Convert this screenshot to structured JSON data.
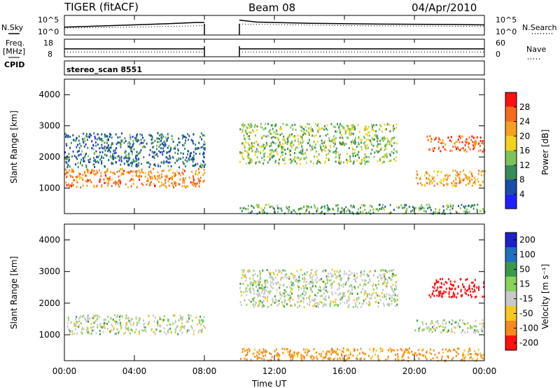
{
  "header": {
    "radar": "TIGER (fitACF)",
    "beam": "Beam 08",
    "date": "04/Apr/2010"
  },
  "left_labels": {
    "nsky": "N.Sky",
    "freq_line1": "Freq.",
    "freq_line2": "[MHz]",
    "cpid": "CPID"
  },
  "right_labels": {
    "nsearch": "N.Search",
    "nave": "Nave"
  },
  "nsky_axis": {
    "top": "10^5",
    "bottom": "10^0"
  },
  "freq_axis": {
    "top": "18",
    "bottom": "8"
  },
  "nave_axis": {
    "top": "60",
    "bottom": "0"
  },
  "cpid_text": "stereo_scan 8551",
  "xaxis": {
    "label": "Time UT",
    "ticks": [
      "00:00",
      "04:00",
      "08:00",
      "12:00",
      "16:00",
      "20:00",
      "00:00"
    ]
  },
  "yaxis": {
    "label": "Slant Range [km]",
    "ticks": [
      "1000",
      "2000",
      "3000",
      "4000"
    ]
  },
  "power_colorbar": {
    "label": "Power [dB]",
    "ticks": [
      "4",
      "8",
      "12",
      "16",
      "20",
      "24",
      "28"
    ],
    "colors": [
      "#2020ff",
      "#1a4da6",
      "#3a8a5a",
      "#7cc45a",
      "#f2d21c",
      "#f6a01f",
      "#f66a1c",
      "#ff1010"
    ]
  },
  "velocity_colorbar": {
    "label": "Velocity [m s⁻¹]",
    "ticks": [
      "200",
      "100",
      "50",
      "15",
      "-15",
      "-50",
      "-100",
      "-200"
    ],
    "colors": [
      "#2020c8",
      "#2070c0",
      "#3a9a4a",
      "#8ad25a",
      "#c8c8c8",
      "#f6c81c",
      "#f68a1c",
      "#ff1010"
    ]
  },
  "chart_data": [
    {
      "type": "line",
      "title": "N.Sky / N.Search",
      "x_range_hours": [
        0,
        24
      ],
      "data_gap_hours": [
        8.0,
        10.0
      ],
      "series": [
        {
          "name": "N.Sky",
          "x": [
            0,
            2,
            4,
            6,
            7.5,
            8,
            10,
            11,
            14,
            18,
            22,
            24
          ],
          "values": [
            2.0,
            2.3,
            2.6,
            2.9,
            3.2,
            3.2,
            3.8,
            3.3,
            3.0,
            2.8,
            2.7,
            2.6
          ]
        },
        {
          "name": "N.Search",
          "x": [
            0,
            4,
            8,
            10,
            16,
            24
          ],
          "values": [
            1.8,
            2.0,
            2.4,
            2.8,
            2.4,
            2.2
          ]
        }
      ]
    },
    {
      "type": "line",
      "title": "Freq / Nave",
      "x_range_hours": [
        0,
        24
      ],
      "data_gap_hours": [
        8.0,
        10.0
      ],
      "series": [
        {
          "name": "Freq. [MHz]",
          "x": [
            0,
            8,
            10,
            24
          ],
          "values": [
            12.5,
            12.5,
            12.5,
            12.5
          ]
        },
        {
          "name": "Nave",
          "x": [
            0,
            8,
            10,
            24
          ],
          "values": [
            16,
            16,
            16,
            16
          ]
        }
      ]
    },
    {
      "type": "heatmap",
      "title": "Power [dB]",
      "x_range_hours": [
        0,
        24
      ],
      "y_range_km": [
        180,
        4500
      ],
      "regions": [
        {
          "name": "main band",
          "x": [
            0,
            8
          ],
          "y": [
            1050,
            1650
          ],
          "value": 24
        },
        {
          "name": "upper scatter",
          "x": [
            0,
            8
          ],
          "y": [
            1700,
            2800
          ],
          "value": 8
        },
        {
          "name": "ground scatter",
          "x": [
            10,
            24
          ],
          "y": [
            200,
            500
          ],
          "value": 12
        },
        {
          "name": "arc",
          "x": [
            10,
            19
          ],
          "y": [
            1800,
            3100
          ],
          "value": 14
        },
        {
          "name": "evening echoes",
          "x": [
            20.7,
            24
          ],
          "y": [
            2200,
            2700
          ],
          "value": 26
        },
        {
          "name": "evening band",
          "x": [
            20,
            24
          ],
          "y": [
            1100,
            1600
          ],
          "value": 22
        }
      ]
    },
    {
      "type": "heatmap",
      "title": "Velocity [m s⁻¹]",
      "x_range_hours": [
        0,
        24
      ],
      "y_range_km": [
        180,
        4500
      ],
      "regions": [
        {
          "name": "main band",
          "x": [
            0,
            8
          ],
          "y": [
            1050,
            1650
          ],
          "value": 0
        },
        {
          "name": "arc",
          "x": [
            10,
            19
          ],
          "y": [
            1900,
            3100
          ],
          "value": 0
        },
        {
          "name": "near range",
          "x": [
            10,
            24
          ],
          "y": [
            200,
            600
          ],
          "value": -60
        },
        {
          "name": "evening echoes",
          "x": [
            20.8,
            24
          ],
          "y": [
            2200,
            2800
          ],
          "value": -200
        },
        {
          "name": "evening band",
          "x": [
            20,
            24
          ],
          "y": [
            1100,
            1500
          ],
          "value": 0
        }
      ]
    }
  ]
}
